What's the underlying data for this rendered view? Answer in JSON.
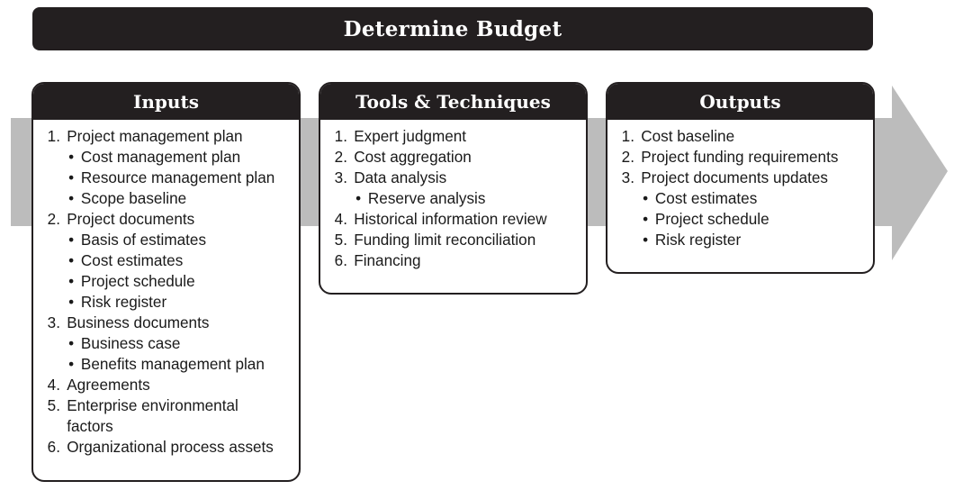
{
  "title": "Determine Budget",
  "inputs": {
    "header": "Inputs",
    "items": [
      {
        "num": "1.",
        "label": "Project management plan",
        "subs": [
          "Cost management plan",
          "Resource management plan",
          "Scope baseline"
        ]
      },
      {
        "num": "2.",
        "label": "Project documents",
        "subs": [
          "Basis of estimates",
          "Cost estimates",
          "Project schedule",
          "Risk register"
        ]
      },
      {
        "num": "3.",
        "label": "Business documents",
        "subs": [
          "Business case",
          "Benefits management plan"
        ]
      },
      {
        "num": "4.",
        "label": "Agreements",
        "subs": []
      },
      {
        "num": "5.",
        "label": "Enterprise environmental",
        "cont": "factors",
        "subs": []
      },
      {
        "num": "6.",
        "label": "Organizational process assets",
        "subs": []
      }
    ]
  },
  "tools": {
    "header": "Tools & Techniques",
    "items": [
      {
        "num": "1.",
        "label": "Expert judgment",
        "subs": []
      },
      {
        "num": "2.",
        "label": "Cost aggregation",
        "subs": []
      },
      {
        "num": "3.",
        "label": "Data analysis",
        "subs": [
          "Reserve analysis"
        ]
      },
      {
        "num": "4.",
        "label": "Historical information review",
        "subs": []
      },
      {
        "num": "5.",
        "label": "Funding limit reconciliation",
        "subs": []
      },
      {
        "num": "6.",
        "label": "Financing",
        "subs": []
      }
    ]
  },
  "outputs": {
    "header": "Outputs",
    "items": [
      {
        "num": "1.",
        "label": "Cost baseline",
        "subs": []
      },
      {
        "num": "2.",
        "label": "Project funding requirements",
        "subs": []
      },
      {
        "num": "3.",
        "label": "Project documents updates",
        "subs": [
          "Cost estimates",
          "Project schedule",
          "Risk register"
        ]
      }
    ]
  },
  "colors": {
    "dark": "#231f20",
    "arrow": "#bcbcbc",
    "text": "#1a1a1a"
  }
}
